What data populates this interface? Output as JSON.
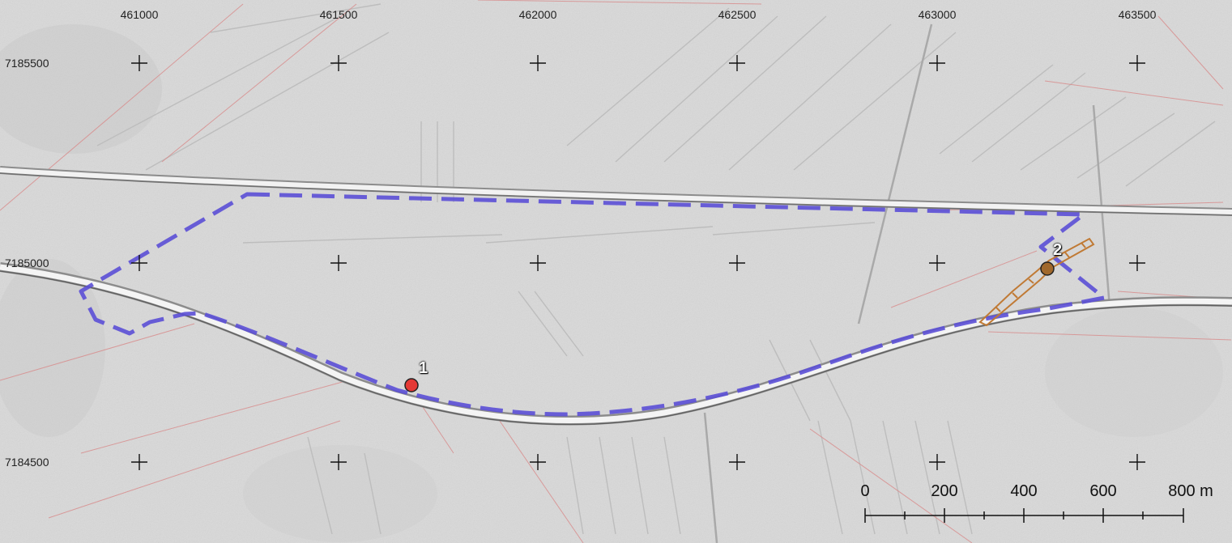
{
  "map": {
    "x_grid_labels": [
      "461000",
      "461500",
      "462000",
      "462500",
      "463000",
      "463500"
    ],
    "y_grid_labels": [
      "7185500",
      "7185000",
      "7184500"
    ],
    "sites": [
      {
        "label": "1",
        "color": "#e53935"
      },
      {
        "label": "2",
        "color": "#a0682c"
      }
    ],
    "scale_bar": {
      "labels": [
        "0",
        "200",
        "400",
        "600",
        "800 m"
      ]
    },
    "colors": {
      "study_area_outline": "#5b4fd6",
      "feature_polygon": "#c07a35",
      "parcel_lines": "#d88a8a",
      "background": "#d9d9d9"
    }
  }
}
